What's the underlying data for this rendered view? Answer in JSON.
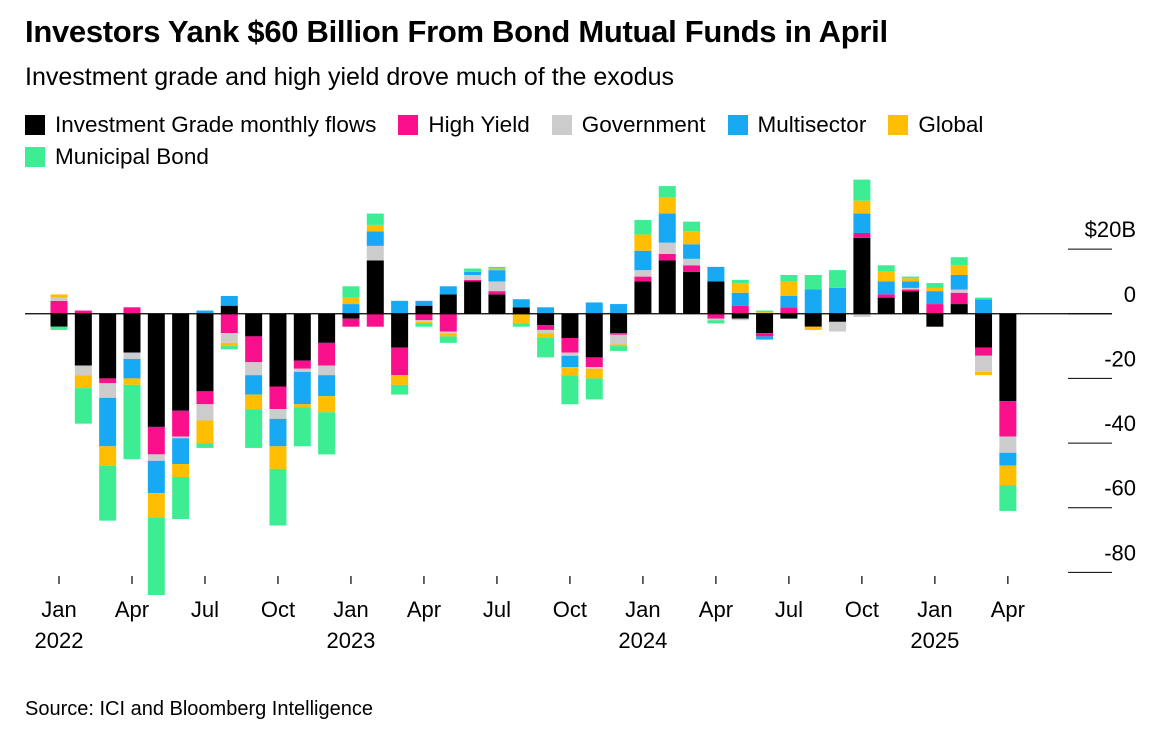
{
  "chart_data": {
    "type": "stacked_bar",
    "title": "Investors Yank $60 Billion From Bond Mutual Funds in April",
    "subtitle": "Investment grade and high yield drove much of the exodus",
    "source": "Source: ICI and Bloomberg Intelligence",
    "categories": [
      "Jan\n2022",
      null,
      null,
      "Apr",
      null,
      null,
      "Jul",
      null,
      null,
      "Oct",
      null,
      null,
      "Jan\n2023",
      null,
      null,
      "Apr",
      null,
      null,
      "Jul",
      null,
      null,
      "Oct",
      null,
      null,
      "Jan\n2024",
      null,
      null,
      "Apr",
      null,
      null,
      "Jul",
      null,
      null,
      "Oct",
      null,
      null,
      "Jan\n2025",
      null,
      null,
      "Apr"
    ],
    "series": [
      {
        "name": "Investment Grade monthly flows",
        "color": "#000000",
        "values": [
          -4,
          -16,
          -20,
          -12,
          -35,
          -30,
          -24,
          2.5,
          -7,
          -22.5,
          -14.5,
          -9,
          -1.5,
          16.5,
          -10.5,
          2.5,
          6,
          10,
          6,
          2,
          -3.5,
          -7.5,
          -13.5,
          -6,
          10,
          16.5,
          13,
          10,
          -1.5,
          -6,
          -1.5,
          -4,
          -2.5,
          23.5,
          5,
          7,
          -4,
          3,
          -10.5,
          -27
        ]
      },
      {
        "name": "High Yield",
        "color": "#fa0f8c",
        "values": [
          4,
          1,
          -1.5,
          2,
          -8.5,
          -8,
          -4,
          -6,
          -8,
          -7,
          -2.5,
          -7,
          -2.5,
          -4,
          -8.5,
          -2,
          -5.5,
          0.5,
          1,
          0,
          -1.5,
          -4.5,
          -3,
          -0.5,
          1.5,
          2,
          2,
          -1.5,
          2.5,
          -1,
          2,
          0,
          0,
          1.5,
          1,
          0.5,
          3,
          3.5,
          -2.5,
          -11
        ]
      },
      {
        "name": "Government",
        "color": "#cccccc",
        "values": [
          1,
          -3,
          -4.5,
          -2,
          -2,
          -0.5,
          -5,
          -3,
          -4,
          -3,
          -1,
          -3,
          0,
          4.5,
          0,
          -0.5,
          -0.5,
          1.5,
          3,
          0,
          -1,
          -1,
          -0.5,
          -3,
          2,
          3.5,
          2,
          -0.5,
          -0.5,
          0,
          0,
          0,
          -3,
          -1,
          0,
          0.5,
          0,
          1,
          -5,
          -5
        ]
      },
      {
        "name": "Multisector",
        "color": "#17a9f4",
        "values": [
          0,
          0,
          -15,
          -6,
          -10,
          -8,
          1,
          3,
          -6,
          -8.5,
          -10,
          -6.5,
          3,
          4.5,
          4,
          1.5,
          2.5,
          1,
          3.5,
          2.5,
          2,
          -3.5,
          3.5,
          3,
          6,
          9,
          4.5,
          4.5,
          4,
          -1,
          3.5,
          7.5,
          8,
          6,
          4,
          2,
          4,
          4.5,
          4.5,
          -4
        ]
      },
      {
        "name": "Global",
        "color": "#ffbf00",
        "values": [
          1,
          -4,
          -6,
          -2,
          -7.5,
          -4,
          -7,
          -1,
          -4.5,
          -7,
          -1,
          -5,
          2,
          2,
          -3,
          -0.5,
          -1,
          0,
          0.5,
          -3,
          -1.5,
          -2.5,
          -3,
          -0.5,
          5,
          5,
          4,
          0,
          3,
          0.5,
          4.5,
          -1,
          0,
          4,
          3,
          1,
          1,
          3,
          -1,
          -6
        ]
      },
      {
        "name": "Municipal Bond",
        "color": "#3ded94",
        "values": [
          -1,
          -11,
          -17,
          -23,
          -24,
          -13,
          -1.5,
          -1,
          -12,
          -17.5,
          -12,
          -13,
          3.5,
          3.5,
          -3,
          -1,
          -2,
          1,
          0.5,
          -1,
          -6,
          -9,
          -6.5,
          -1.5,
          4.5,
          3.5,
          3,
          -1,
          1,
          0.5,
          2,
          4.5,
          5.5,
          6.5,
          2,
          0.5,
          1.5,
          2.5,
          0.5,
          -8
        ]
      }
    ],
    "ylim": [
      -87,
      42
    ],
    "yticks": [
      {
        "value": 20,
        "label": "$20B"
      },
      0,
      -20,
      -40,
      -60,
      -80
    ]
  }
}
